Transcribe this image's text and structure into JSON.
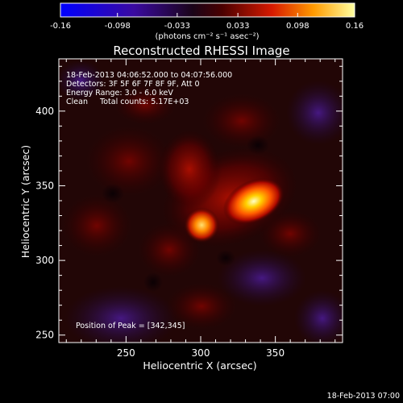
{
  "chart_data": {
    "type": "heatmap",
    "title": "Reconstructed RHESSI Image",
    "xlabel": "Heliocentric X (arcsec)",
    "ylabel": "Heliocentric Y (arcsec)",
    "xlim": [
      205,
      395
    ],
    "ylim": [
      245,
      435
    ],
    "xticks": [
      "250",
      "300",
      "350"
    ],
    "yticks": [
      "250",
      "300",
      "350",
      "400"
    ],
    "colorbar": {
      "range": [
        -0.16,
        0.16
      ],
      "ticks": [
        "-0.16",
        "-0.098",
        "-0.033",
        "0.033",
        "0.098",
        "0.16"
      ],
      "unit_label": "(photons cm⁻² s⁻¹ asec⁻²)"
    },
    "annotations": [
      "18-Feb-2013 04:06:52.000 to 04:07:56.000",
      "Detectors: 3F 5F 6F 7F 8F 9F, Att 0",
      "Energy Range: 3.0 - 6.0 keV",
      "Clean     Total counts: 5.17E+03"
    ],
    "peak_text": "Position of Peak = [342,345]",
    "sources": [
      {
        "x": 342,
        "y": 345,
        "value": 0.16
      },
      {
        "x": 305,
        "y": 328,
        "value": 0.13
      }
    ]
  },
  "footer_timestamp": "18-Feb-2013 07:00"
}
